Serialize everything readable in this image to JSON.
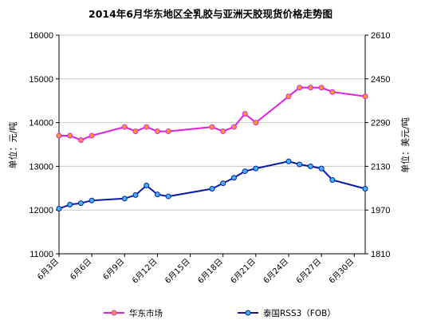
{
  "chart_data": {
    "type": "line",
    "title": "2014年6月华东地区全乳胶与亚洲天胶现货价格走势图",
    "ylabel_left": "单位：元/吨",
    "ylabel_right": "单位：美元/吨",
    "left_axis": {
      "min": 11000,
      "max": 16000,
      "ticks": [
        "11000",
        "12000",
        "13000",
        "14000",
        "15000",
        "16000"
      ]
    },
    "right_axis": {
      "min": 1810,
      "max": 2610,
      "ticks": [
        "1810",
        "1970",
        "2130",
        "2290",
        "2450",
        "2610"
      ]
    },
    "x_range": [
      3,
      31
    ],
    "x_ticks": [
      {
        "day": 3,
        "label": "6月3日"
      },
      {
        "day": 6,
        "label": "6月6日"
      },
      {
        "day": 9,
        "label": "6月9日"
      },
      {
        "day": 12,
        "label": "6月12日"
      },
      {
        "day": 15,
        "label": "6月15日"
      },
      {
        "day": 18,
        "label": "6月18日"
      },
      {
        "day": 21,
        "label": "6月21日"
      },
      {
        "day": 24,
        "label": "6月24日"
      },
      {
        "day": 27,
        "label": "6月27日"
      },
      {
        "day": 30,
        "label": "6月30日"
      }
    ],
    "legend_position": "bottom",
    "series": [
      {
        "name": "华东市场",
        "axis": "left",
        "color": "#e020e0",
        "marker_color": "#ff9a2e",
        "x": [
          3,
          4,
          5,
          6,
          9,
          10,
          11,
          12,
          13,
          17,
          18,
          19,
          20,
          21,
          24,
          25,
          26,
          27,
          28,
          31
        ],
        "values": [
          13700,
          13700,
          13600,
          13700,
          13900,
          13800,
          13900,
          13800,
          13800,
          13900,
          13800,
          13900,
          14200,
          14000,
          14600,
          14800,
          14800,
          14800,
          14700,
          14600
        ]
      },
      {
        "name": "泰国RSS3（FOB）",
        "axis": "right",
        "color": "#0a1aa8",
        "marker_color": "#3fb8f0",
        "x": [
          3,
          4,
          5,
          6,
          9,
          10,
          11,
          12,
          13,
          17,
          18,
          19,
          20,
          21,
          24,
          25,
          26,
          27,
          28,
          31
        ],
        "values": [
          1975,
          1990,
          1995,
          2005,
          2012,
          2025,
          2060,
          2027,
          2020,
          2048,
          2068,
          2088,
          2112,
          2122,
          2148,
          2137,
          2130,
          2122,
          2080,
          2048
        ]
      }
    ]
  }
}
